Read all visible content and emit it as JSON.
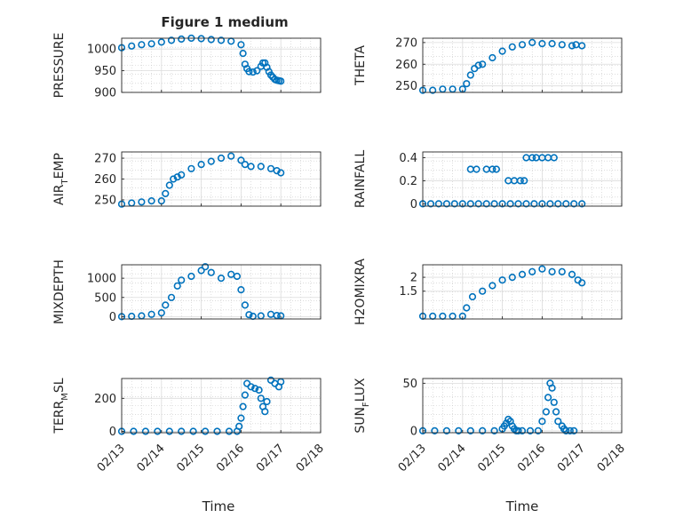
{
  "figure": {
    "title": "Figure 1 medium",
    "xlabel": "Time"
  },
  "colors": {
    "marker": "#0072BD",
    "axis": "#262626",
    "grid": "#c8c8c8"
  },
  "chart_data": [
    {
      "type": "scatter",
      "ylabel": "PRESSURE",
      "ylim": [
        900,
        1025
      ],
      "yticks": [
        "1000",
        "950",
        "900"
      ],
      "ytick_values": [
        1000,
        950,
        900
      ],
      "xlim": [
        0,
        5
      ],
      "xticks": [
        "02/13",
        "02/14",
        "02/15",
        "02/16",
        "02/17",
        "02/18"
      ],
      "grid": true,
      "x": [
        0,
        0.25,
        0.5,
        0.75,
        1.0,
        1.25,
        1.5,
        1.75,
        2.0,
        2.25,
        2.5,
        2.75,
        3.0,
        3.05,
        3.1,
        3.15,
        3.2,
        3.3,
        3.4,
        3.5,
        3.55,
        3.6,
        3.65,
        3.7,
        3.75,
        3.8,
        3.85,
        3.9,
        3.95,
        4.0
      ],
      "y": [
        1003,
        1007,
        1010,
        1012,
        1016,
        1020,
        1023,
        1025,
        1024,
        1022,
        1020,
        1018,
        1010,
        990,
        965,
        955,
        948,
        947,
        950,
        960,
        968,
        968,
        958,
        948,
        940,
        935,
        930,
        928,
        927,
        926
      ]
    },
    {
      "type": "scatter",
      "ylabel": "THETA",
      "ylim": [
        247,
        272
      ],
      "yticks": [
        "270",
        "260",
        "250"
      ],
      "ytick_values": [
        270,
        260,
        250
      ],
      "xlim": [
        0,
        5
      ],
      "xticks": [
        "02/13",
        "02/14",
        "02/15",
        "02/16",
        "02/17",
        "02/18"
      ],
      "grid": true,
      "x": [
        0,
        0.25,
        0.5,
        0.75,
        1.0,
        1.1,
        1.2,
        1.3,
        1.4,
        1.5,
        1.75,
        2.0,
        2.25,
        2.5,
        2.75,
        3.0,
        3.25,
        3.5,
        3.75,
        3.85,
        4.0
      ],
      "y": [
        248,
        248,
        248.5,
        248.5,
        248.5,
        251,
        255,
        258,
        259.5,
        260,
        263,
        266,
        268,
        269,
        270,
        269.5,
        269.5,
        269,
        268.5,
        269,
        268.5
      ]
    },
    {
      "type": "scatter",
      "ylabel": "AIR",
      "ylabel_sub": "T",
      "ylabel_rest": "EMP",
      "ylim": [
        247,
        273
      ],
      "yticks": [
        "270",
        "260",
        "250"
      ],
      "ytick_values": [
        270,
        260,
        250
      ],
      "xlim": [
        0,
        5
      ],
      "xticks": [
        "02/13",
        "02/14",
        "02/15",
        "02/16",
        "02/17",
        "02/18"
      ],
      "grid": true,
      "x": [
        0,
        0.25,
        0.5,
        0.75,
        1.0,
        1.1,
        1.2,
        1.3,
        1.4,
        1.5,
        1.75,
        2.0,
        2.25,
        2.5,
        2.75,
        3.0,
        3.1,
        3.25,
        3.5,
        3.75,
        3.9,
        4.0
      ],
      "y": [
        248,
        248.5,
        249,
        249.5,
        249.5,
        253,
        257,
        260,
        261,
        262,
        265,
        267,
        268.5,
        270,
        271,
        269,
        267,
        266,
        266,
        265,
        264,
        263
      ]
    },
    {
      "type": "scatter",
      "ylabel": "RAINFALL",
      "ylim": [
        -0.02,
        0.45
      ],
      "yticks": [
        "0.4",
        "0.2",
        "0"
      ],
      "ytick_values": [
        0.4,
        0.2,
        0
      ],
      "xlim": [
        0,
        5
      ],
      "xticks": [
        "02/13",
        "02/14",
        "02/15",
        "02/16",
        "02/17",
        "02/18"
      ],
      "grid": true,
      "x": [
        0,
        0.2,
        0.4,
        0.6,
        0.8,
        1.0,
        1.2,
        1.4,
        1.6,
        1.8,
        2.0,
        2.2,
        2.4,
        2.6,
        2.8,
        3.0,
        3.2,
        3.4,
        3.6,
        3.8,
        4.0,
        1.2,
        1.35,
        1.6,
        1.75,
        1.85,
        2.15,
        2.3,
        2.45,
        2.55,
        2.6,
        2.75,
        2.85,
        3.0,
        3.15,
        3.3
      ],
      "y": [
        0,
        0,
        0,
        0,
        0,
        0,
        0,
        0,
        0,
        0,
        0,
        0,
        0,
        0,
        0,
        0,
        0,
        0,
        0,
        0,
        0,
        0.3,
        0.3,
        0.3,
        0.3,
        0.3,
        0.2,
        0.2,
        0.2,
        0.2,
        0.4,
        0.4,
        0.4,
        0.4,
        0.4,
        0.4
      ]
    },
    {
      "type": "scatter",
      "ylabel": "MIXDEPTH",
      "ylim": [
        -60,
        1350
      ],
      "yticks": [
        "1000",
        "500",
        "0"
      ],
      "ytick_values": [
        1000,
        500,
        0
      ],
      "xlim": [
        0,
        5
      ],
      "xticks": [
        "02/13",
        "02/14",
        "02/15",
        "02/16",
        "02/17",
        "02/18"
      ],
      "grid": true,
      "x": [
        0,
        0.25,
        0.5,
        0.75,
        1.0,
        1.1,
        1.25,
        1.4,
        1.5,
        1.75,
        2.0,
        2.1,
        2.25,
        2.5,
        2.75,
        2.9,
        3.0,
        3.1,
        3.2,
        3.3,
        3.5,
        3.75,
        3.9,
        4.0
      ],
      "y": [
        0,
        10,
        20,
        60,
        100,
        300,
        500,
        800,
        950,
        1050,
        1200,
        1300,
        1150,
        1000,
        1100,
        1050,
        700,
        300,
        50,
        10,
        20,
        60,
        30,
        20
      ]
    },
    {
      "type": "scatter",
      "ylabel": "H2OMIXRA",
      "ylim": [
        0.5,
        2.45
      ],
      "yticks": [
        "2",
        "1.5"
      ],
      "ytick_values": [
        2,
        1.5
      ],
      "xlim": [
        0,
        5
      ],
      "xticks": [
        "02/13",
        "02/14",
        "02/15",
        "02/16",
        "02/17",
        "02/18"
      ],
      "grid": true,
      "x": [
        0,
        0.25,
        0.5,
        0.75,
        1.0,
        1.1,
        1.25,
        1.5,
        1.75,
        2.0,
        2.25,
        2.5,
        2.75,
        3.0,
        3.25,
        3.5,
        3.75,
        3.9,
        4.0
      ],
      "y": [
        0.6,
        0.6,
        0.6,
        0.6,
        0.6,
        0.9,
        1.3,
        1.5,
        1.7,
        1.9,
        2.0,
        2.1,
        2.2,
        2.3,
        2.2,
        2.2,
        2.1,
        1.9,
        1.8
      ]
    },
    {
      "type": "scatter",
      "ylabel": "TERR",
      "ylabel_sub": "M",
      "ylabel_rest": "SL",
      "ylim": [
        -8,
        320
      ],
      "yticks": [
        "200",
        "0"
      ],
      "ytick_values": [
        200,
        0
      ],
      "xlim": [
        0,
        5
      ],
      "xticks": [
        "02/13",
        "02/14",
        "02/15",
        "02/16",
        "02/17",
        "02/18"
      ],
      "grid": true,
      "x": [
        0,
        0.3,
        0.6,
        0.9,
        1.2,
        1.5,
        1.8,
        2.1,
        2.4,
        2.7,
        2.9,
        2.95,
        3.0,
        3.05,
        3.1,
        3.15,
        3.25,
        3.35,
        3.45,
        3.5,
        3.55,
        3.6,
        3.65,
        3.75,
        3.85,
        3.95,
        4.0
      ],
      "y": [
        0,
        0,
        0,
        0,
        0,
        0,
        0,
        0,
        0,
        0,
        0,
        30,
        80,
        150,
        220,
        290,
        270,
        260,
        250,
        200,
        150,
        120,
        180,
        310,
        290,
        270,
        300
      ]
    },
    {
      "type": "scatter",
      "ylabel": "SUN",
      "ylabel_sub": "F",
      "ylabel_rest": "LUX",
      "ylim": [
        -2,
        55
      ],
      "yticks": [
        "50",
        "0"
      ],
      "ytick_values": [
        50,
        0
      ],
      "xlim": [
        0,
        5
      ],
      "xticks": [
        "02/13",
        "02/14",
        "02/15",
        "02/16",
        "02/17",
        "02/18"
      ],
      "grid": true,
      "x": [
        0,
        0.3,
        0.6,
        0.9,
        1.2,
        1.5,
        1.8,
        2.0,
        2.05,
        2.1,
        2.15,
        2.2,
        2.25,
        2.3,
        2.35,
        2.4,
        2.5,
        2.7,
        2.9,
        3.0,
        3.1,
        3.15,
        3.2,
        3.25,
        3.3,
        3.35,
        3.4,
        3.5,
        3.55,
        3.6,
        3.7,
        3.8
      ],
      "y": [
        0,
        0,
        0,
        0,
        0,
        0,
        0,
        2,
        5,
        8,
        12,
        10,
        5,
        2,
        0,
        0,
        0,
        0,
        0,
        10,
        20,
        35,
        50,
        45,
        30,
        20,
        10,
        5,
        2,
        0,
        0,
        0
      ]
    }
  ]
}
